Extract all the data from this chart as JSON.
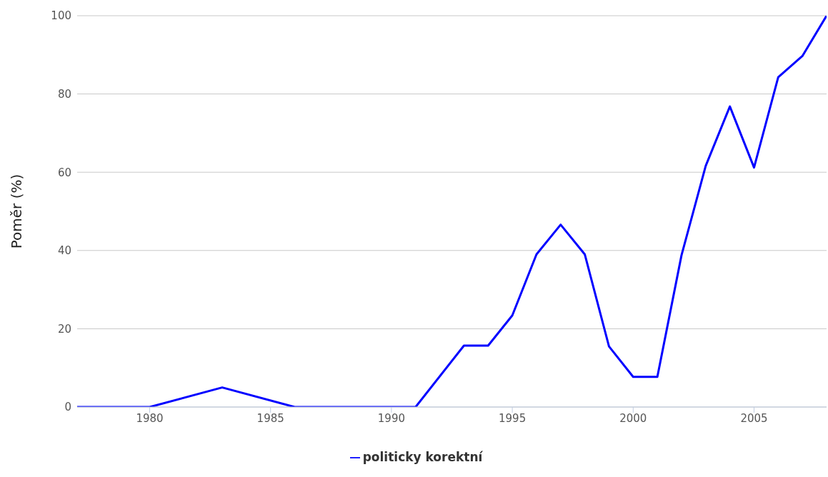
{
  "chart_data": {
    "type": "line",
    "ylabel": "Poměr (%)",
    "x": [
      1977,
      1980,
      1983,
      1986,
      1991,
      1993,
      1994,
      1995,
      1996,
      1997,
      1998,
      1999,
      2000,
      2001,
      2002,
      2003,
      2004,
      2005,
      2006,
      2007,
      2008
    ],
    "series": [
      {
        "name": "politicky korektní",
        "color": "#0000ff",
        "values": [
          0,
          0,
          5,
          0,
          0,
          15.7,
          15.7,
          23.4,
          39,
          46.6,
          39,
          15.5,
          7.7,
          7.7,
          38.8,
          61.6,
          76.8,
          61.2,
          84.3,
          89.7,
          100
        ]
      }
    ],
    "xlim": [
      1977,
      2008
    ],
    "xticks": [
      1980,
      1985,
      1990,
      1995,
      2000,
      2005
    ],
    "ylim": [
      0,
      100
    ],
    "yticks": [
      0,
      20,
      40,
      60,
      80,
      100
    ],
    "grid": "y",
    "legend": "bottom",
    "marker": "none",
    "line_style": "solid"
  }
}
